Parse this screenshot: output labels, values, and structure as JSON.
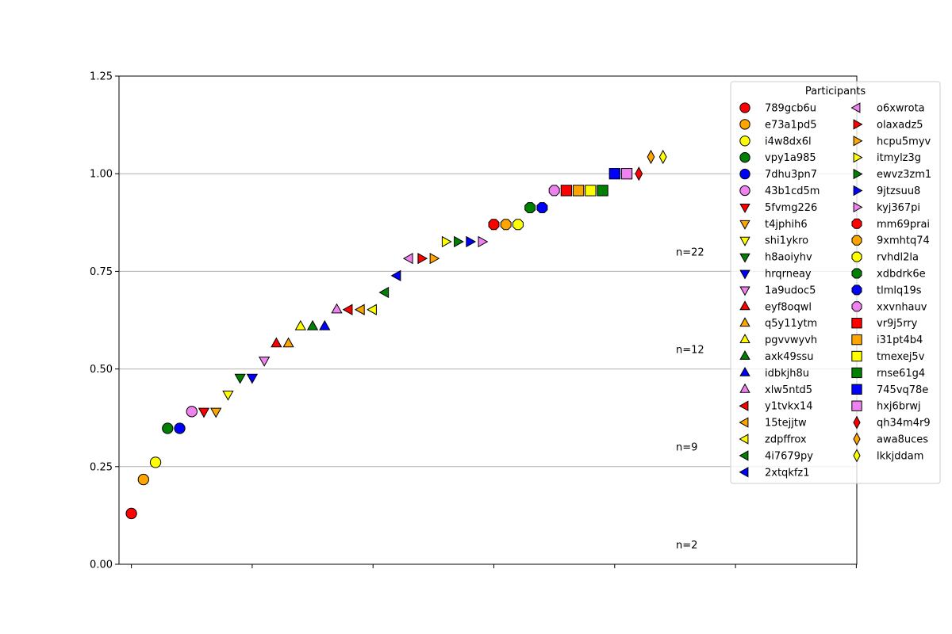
{
  "chart_data": {
    "type": "scatter",
    "title": "",
    "xlabel": "",
    "ylabel": "",
    "ylim": [
      0.0,
      1.25
    ],
    "y_ticks": [
      "0.00",
      "0.25",
      "0.50",
      "0.75",
      "1.00",
      "1.25"
    ],
    "x_tick_count": 7,
    "y_grid": true,
    "legend_title": "Participants",
    "legend_position": "upper right",
    "annotations": [
      {
        "text": "n=2",
        "y": 0.05
      },
      {
        "text": "n=9",
        "y": 0.3
      },
      {
        "text": "n=12",
        "y": 0.55
      },
      {
        "text": "n=22",
        "y": 0.8
      }
    ],
    "series": [
      {
        "name": "789gcb6u",
        "marker": "circle",
        "color": "#ff0000",
        "x": 0,
        "y": 0.13
      },
      {
        "name": "e73a1pd5",
        "marker": "circle",
        "color": "#ffa500",
        "x": 1,
        "y": 0.217
      },
      {
        "name": "i4w8dx6l",
        "marker": "circle",
        "color": "#ffff00",
        "x": 2,
        "y": 0.261
      },
      {
        "name": "vpy1a985",
        "marker": "circle",
        "color": "#008000",
        "x": 3,
        "y": 0.348
      },
      {
        "name": "7dhu3pn7",
        "marker": "circle",
        "color": "#0000ff",
        "x": 4,
        "y": 0.348
      },
      {
        "name": "43b1cd5m",
        "marker": "circle",
        "color": "#ee82ee",
        "x": 5,
        "y": 0.391
      },
      {
        "name": "5fvmg226",
        "marker": "triangle-down",
        "color": "#ff0000",
        "x": 6,
        "y": 0.391
      },
      {
        "name": "t4jphih6",
        "marker": "triangle-down",
        "color": "#ffa500",
        "x": 7,
        "y": 0.391
      },
      {
        "name": "shi1ykro",
        "marker": "triangle-down",
        "color": "#ffff00",
        "x": 8,
        "y": 0.435
      },
      {
        "name": "h8aoiyhv",
        "marker": "triangle-down",
        "color": "#008000",
        "x": 9,
        "y": 0.478
      },
      {
        "name": "hrqrneay",
        "marker": "triangle-down",
        "color": "#0000ff",
        "x": 10,
        "y": 0.478
      },
      {
        "name": "1a9udoc5",
        "marker": "triangle-down",
        "color": "#ee82ee",
        "x": 11,
        "y": 0.522
      },
      {
        "name": "eyf8oqwl",
        "marker": "triangle-up",
        "color": "#ff0000",
        "x": 12,
        "y": 0.565
      },
      {
        "name": "q5y11ytm",
        "marker": "triangle-up",
        "color": "#ffa500",
        "x": 13,
        "y": 0.565
      },
      {
        "name": "pgvvwyvh",
        "marker": "triangle-up",
        "color": "#ffff00",
        "x": 14,
        "y": 0.609
      },
      {
        "name": "axk49ssu",
        "marker": "triangle-up",
        "color": "#008000",
        "x": 15,
        "y": 0.609
      },
      {
        "name": "idbkjh8u",
        "marker": "triangle-up",
        "color": "#0000ff",
        "x": 16,
        "y": 0.609
      },
      {
        "name": "xlw5ntd5",
        "marker": "triangle-up",
        "color": "#ee82ee",
        "x": 17,
        "y": 0.652
      },
      {
        "name": "y1tvkx14",
        "marker": "triangle-left",
        "color": "#ff0000",
        "x": 18,
        "y": 0.652
      },
      {
        "name": "15tejjtw",
        "marker": "triangle-left",
        "color": "#ffa500",
        "x": 19,
        "y": 0.652
      },
      {
        "name": "zdpffrox",
        "marker": "triangle-left",
        "color": "#ffff00",
        "x": 20,
        "y": 0.652
      },
      {
        "name": "4i7679py",
        "marker": "triangle-left",
        "color": "#008000",
        "x": 21,
        "y": 0.696
      },
      {
        "name": "2xtqkfz1",
        "marker": "triangle-left",
        "color": "#0000ff",
        "x": 22,
        "y": 0.739
      },
      {
        "name": "o6xwrota",
        "marker": "triangle-left",
        "color": "#ee82ee",
        "x": 23,
        "y": 0.783
      },
      {
        "name": "olaxadz5",
        "marker": "triangle-right",
        "color": "#ff0000",
        "x": 24,
        "y": 0.783
      },
      {
        "name": "hcpu5myv",
        "marker": "triangle-right",
        "color": "#ffa500",
        "x": 25,
        "y": 0.783
      },
      {
        "name": "itmylz3g",
        "marker": "triangle-right",
        "color": "#ffff00",
        "x": 26,
        "y": 0.826
      },
      {
        "name": "ewvz3zm1",
        "marker": "triangle-right",
        "color": "#008000",
        "x": 27,
        "y": 0.826
      },
      {
        "name": "9jtzsuu8",
        "marker": "triangle-right",
        "color": "#0000ff",
        "x": 28,
        "y": 0.826
      },
      {
        "name": "kyj367pi",
        "marker": "triangle-right",
        "color": "#ee82ee",
        "x": 29,
        "y": 0.826
      },
      {
        "name": "mm69prai",
        "marker": "octagon",
        "color": "#ff0000",
        "x": 30,
        "y": 0.87
      },
      {
        "name": "9xmhtq74",
        "marker": "octagon",
        "color": "#ffa500",
        "x": 31,
        "y": 0.87
      },
      {
        "name": "rvhdl2la",
        "marker": "octagon",
        "color": "#ffff00",
        "x": 32,
        "y": 0.87
      },
      {
        "name": "xdbdrk6e",
        "marker": "octagon",
        "color": "#008000",
        "x": 33,
        "y": 0.913
      },
      {
        "name": "tlmlq19s",
        "marker": "octagon",
        "color": "#0000ff",
        "x": 34,
        "y": 0.913
      },
      {
        "name": "xxvnhauv",
        "marker": "octagon",
        "color": "#ee82ee",
        "x": 35,
        "y": 0.957
      },
      {
        "name": "vr9j5rry",
        "marker": "square",
        "color": "#ff0000",
        "x": 36,
        "y": 0.957
      },
      {
        "name": "i31pt4b4",
        "marker": "square",
        "color": "#ffa500",
        "x": 37,
        "y": 0.957
      },
      {
        "name": "tmexej5v",
        "marker": "square",
        "color": "#ffff00",
        "x": 38,
        "y": 0.957
      },
      {
        "name": "rnse61g4",
        "marker": "square",
        "color": "#008000",
        "x": 39,
        "y": 0.957
      },
      {
        "name": "745vq78e",
        "marker": "square",
        "color": "#0000ff",
        "x": 40,
        "y": 1.0
      },
      {
        "name": "hxj6brwj",
        "marker": "square",
        "color": "#ee82ee",
        "x": 41,
        "y": 1.0
      },
      {
        "name": "qh34m4r9",
        "marker": "diamond",
        "color": "#ff0000",
        "x": 42,
        "y": 1.0
      },
      {
        "name": "awa8uces",
        "marker": "diamond",
        "color": "#ffa500",
        "x": 43,
        "y": 1.043
      },
      {
        "name": "lkkjddam",
        "marker": "diamond",
        "color": "#ffff00",
        "x": 44,
        "y": 1.043
      }
    ]
  }
}
